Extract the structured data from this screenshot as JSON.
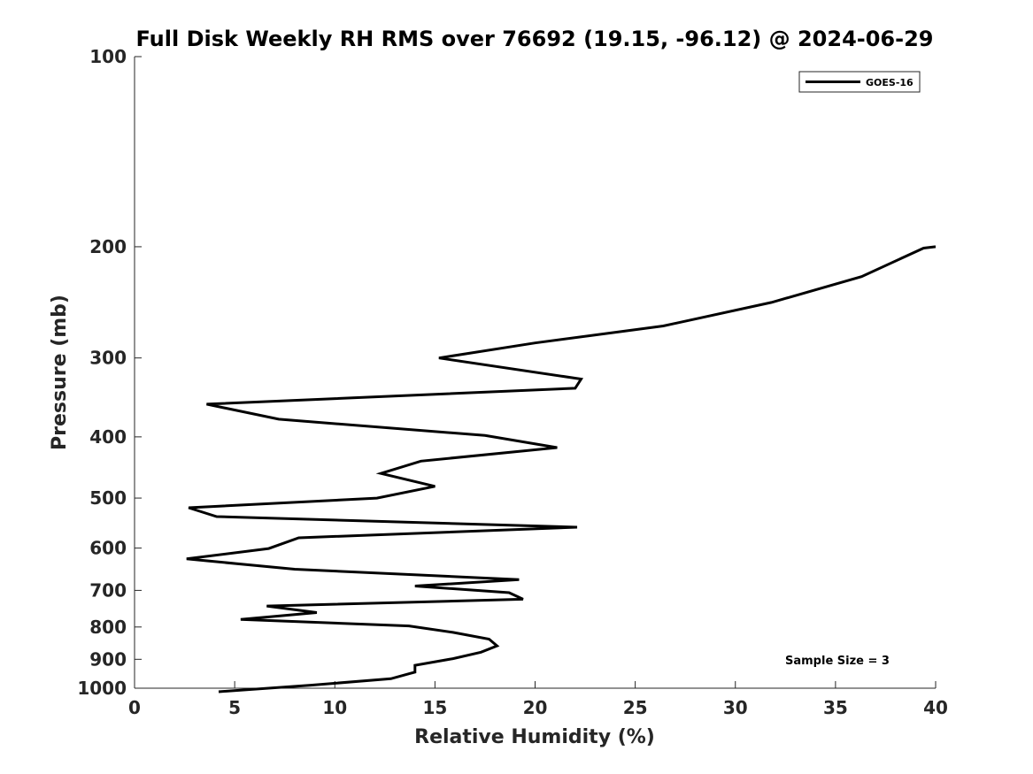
{
  "chart_data": {
    "type": "line",
    "title": "Full Disk Weekly RH RMS over 76692 (19.15, -96.12) @ 2024-06-29",
    "xlabel": "Relative Humidity (%)",
    "ylabel": "Pressure (mb)",
    "xlim": [
      0,
      40
    ],
    "ylim": [
      100,
      1000
    ],
    "y_scale": "log",
    "y_reversed": true,
    "grid": false,
    "legend_position": "top-right",
    "x_ticks": [
      0,
      5,
      10,
      15,
      20,
      25,
      30,
      35,
      40
    ],
    "y_ticks": [
      100,
      200,
      300,
      400,
      500,
      600,
      700,
      800,
      900,
      1000
    ],
    "annotation": "Sample Size = 3",
    "series": [
      {
        "name": "GOES-16",
        "color": "#000000",
        "points": [
          [
            40.0,
            200
          ],
          [
            39.4,
            201
          ],
          [
            36.3,
            223
          ],
          [
            31.8,
            245
          ],
          [
            26.4,
            267
          ],
          [
            20.0,
            284
          ],
          [
            15.2,
            300
          ],
          [
            22.3,
            324
          ],
          [
            22.0,
            335
          ],
          [
            3.6,
            355
          ],
          [
            7.2,
            375
          ],
          [
            17.5,
            398
          ],
          [
            21.1,
            416
          ],
          [
            14.3,
            437
          ],
          [
            12.3,
            457
          ],
          [
            15.0,
            479
          ],
          [
            12.1,
            500
          ],
          [
            2.7,
            518
          ],
          [
            4.1,
            535
          ],
          [
            22.1,
            556
          ],
          [
            8.2,
            578
          ],
          [
            6.7,
            601
          ],
          [
            2.6,
            624
          ],
          [
            8.0,
            648
          ],
          [
            19.2,
            673
          ],
          [
            14.0,
            689
          ],
          [
            18.7,
            706
          ],
          [
            19.4,
            723
          ],
          [
            6.6,
            741
          ],
          [
            9.1,
            759
          ],
          [
            5.3,
            778
          ],
          [
            13.7,
            797
          ],
          [
            15.9,
            816
          ],
          [
            17.7,
            836
          ],
          [
            18.1,
            857
          ],
          [
            17.3,
            877
          ],
          [
            15.9,
            898
          ],
          [
            14.0,
            920
          ],
          [
            14.0,
            943
          ],
          [
            12.8,
            966
          ],
          [
            8.8,
            989
          ],
          [
            4.2,
            1013
          ]
        ]
      }
    ]
  }
}
